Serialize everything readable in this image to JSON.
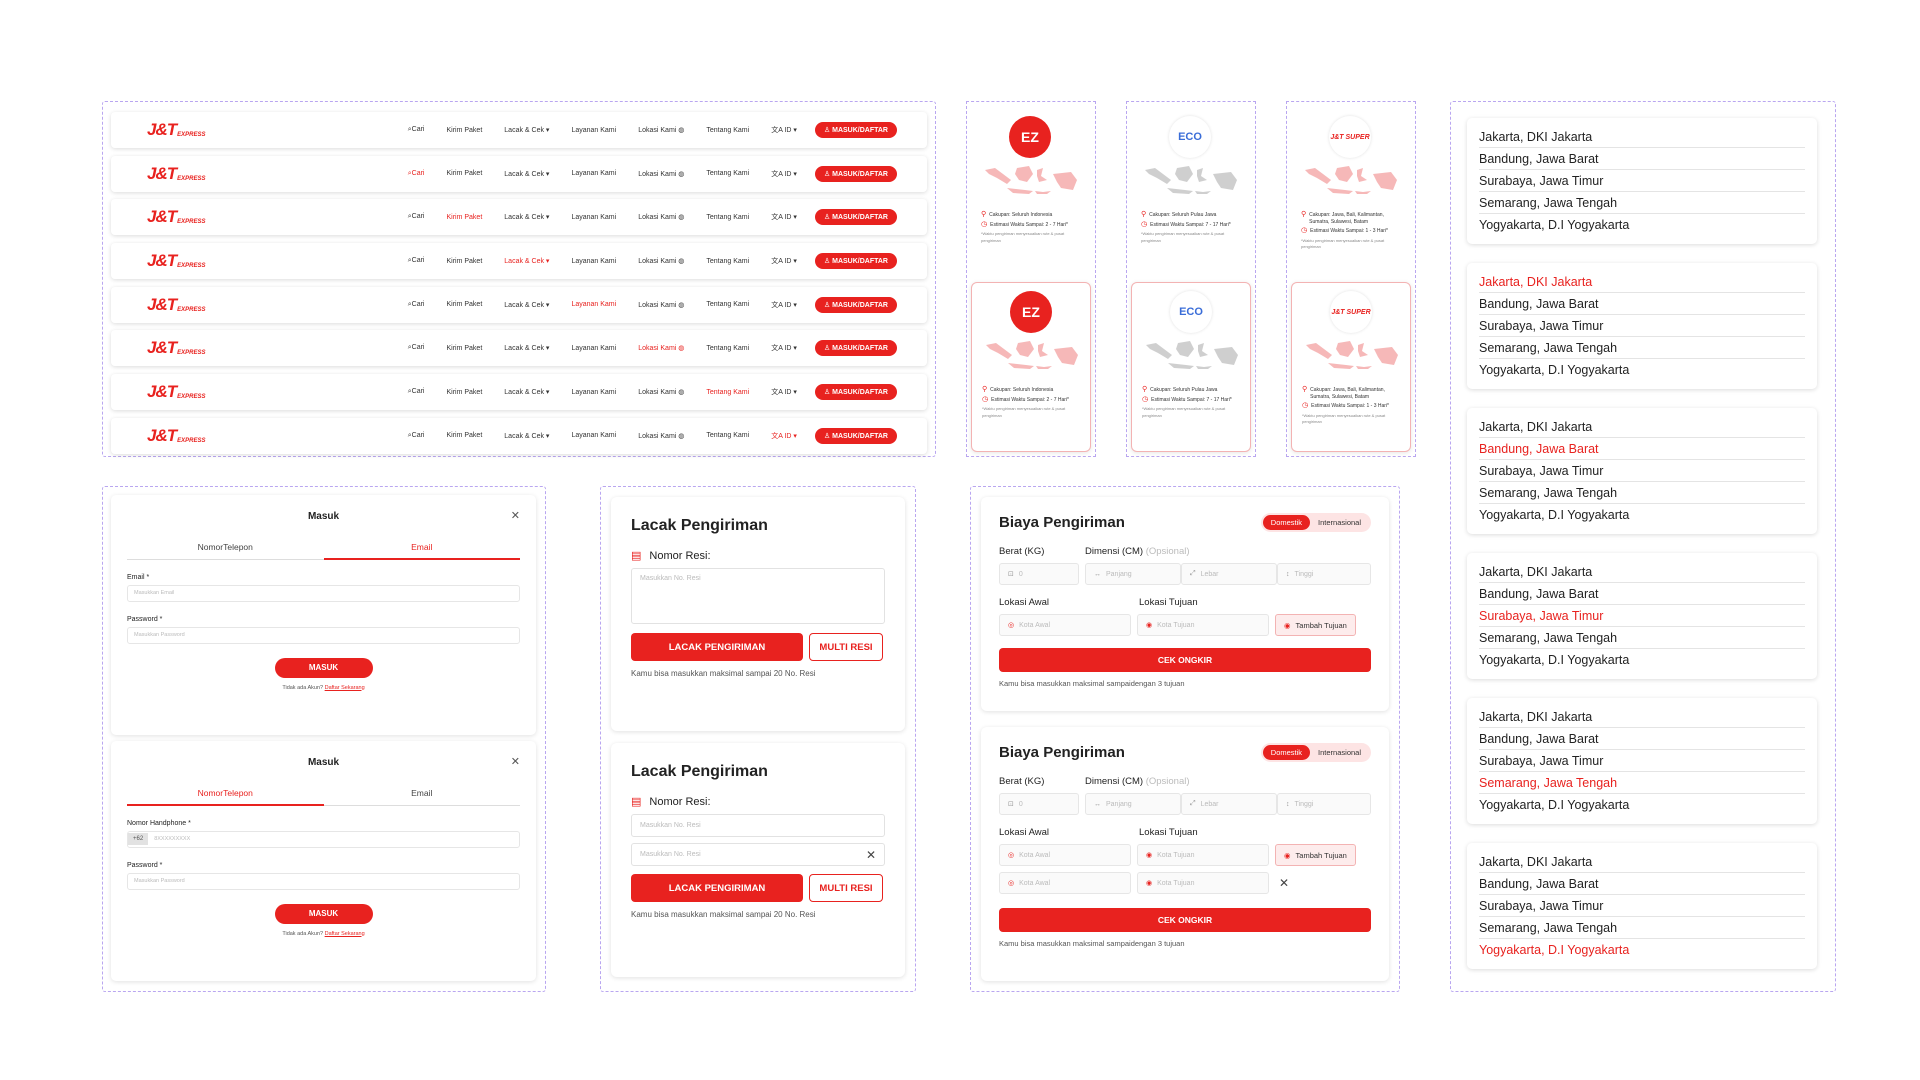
{
  "brand": {
    "logo_text": "J&T",
    "logo_sub": "EXPRESS",
    "accent": "#e8221f"
  },
  "nav": {
    "links": [
      "Cari",
      "Kirim Paket",
      "Lacak & Cek ▾",
      "Layanan Kami",
      "Lokasi Kami ◍",
      "Tentang Kami",
      "文A ID ▾"
    ],
    "cta": "MASUK/DAFTAR",
    "active_states": [
      -1,
      0,
      1,
      2,
      3,
      4,
      5,
      6
    ]
  },
  "services": [
    {
      "badge": "EZ",
      "coverage": "Cakupan: Seluruh Indonesia",
      "eta": "Estimasi Waktu Sampai: 2 - 7 Hari*",
      "note": "*Waktu pengiriman menyesuaikan rute & pusat pengiriman"
    },
    {
      "badge": "ECO",
      "coverage": "Cakupan: Seluruh Pulau Jawa",
      "eta": "Estimasi Waktu Sampai: 7 - 17 Hari*",
      "note": "*Waktu pengiriman menyesuaikan rute & pusat pengiriman"
    },
    {
      "badge": "J&T SUPER",
      "coverage": "Cakupan: Jawa, Bali, Kalimantan, Sumatra, Sulawesi, Batam",
      "eta": "Estimasi Waktu Sampai: 1 - 3 Hari*",
      "note": "*Waktu pengiriman menyesuaikan rute & pusat pengiriman"
    }
  ],
  "cities": {
    "items": [
      "Jakarta, DKI Jakarta",
      "Bandung, Jawa Barat",
      "Surabaya, Jawa Timur",
      "Semarang, Jawa Tengah",
      "Yogyakarta, D.I Yogyakarta"
    ],
    "selected_per_box": [
      -1,
      0,
      1,
      2,
      3,
      4
    ]
  },
  "login": {
    "title": "Masuk",
    "tab_phone": "NomorTelepon",
    "tab_email": "Email",
    "email_label": "Email *",
    "email_placeholder": "Masukkan Email",
    "password_label": "Password *",
    "password_placeholder": "Masukkan Password",
    "phone_label": "Nomor Handphone *",
    "phone_prefix": "+62",
    "phone_placeholder": "8XXXXXXXXX",
    "submit": "MASUK",
    "footer_text": "Tidak ada Akun?",
    "footer_link": "Daftar Sekarang"
  },
  "track": {
    "title": "Lacak Pengiriman",
    "label": "Nomor Resi:",
    "placeholder": "Masukkan No. Resi",
    "primary": "LACAK PENGIRIMAN",
    "secondary": "MULTI RESI",
    "hint": "Kamu bisa masukkan maksimal sampai 20 No. Resi"
  },
  "cost": {
    "title": "Biaya Pengiriman",
    "toggle_on": "Domestik",
    "toggle_off": "Internasional",
    "weight_label": "Berat (KG)",
    "dim_label": "Dimensi (CM)",
    "dim_optional": "(Opsional)",
    "weight_placeholder": "0",
    "dim_p": "Panjang",
    "dim_l": "Lebar",
    "dim_t": "Tinggi",
    "origin_label": "Lokasi Awal",
    "dest_label": "Lokasi Tujuan",
    "origin_placeholder": "Kota Awal",
    "dest_placeholder": "Kota Tujuan",
    "add_dest": "Tambah Tujuan",
    "submit": "CEK ONGKIR",
    "hint": "Kamu bisa masukkan maksimal sampaidengan 3 tujuan"
  }
}
